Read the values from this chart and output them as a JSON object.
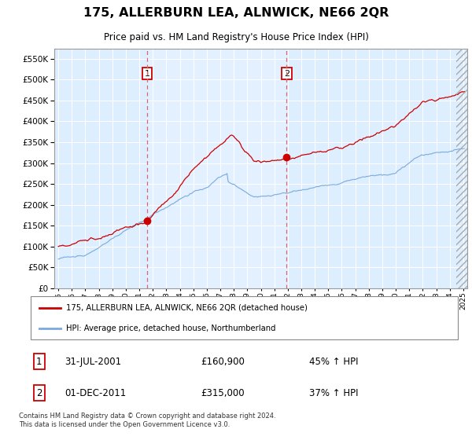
{
  "title": "175, ALLERBURN LEA, ALNWICK, NE66 2QR",
  "subtitle": "Price paid vs. HM Land Registry's House Price Index (HPI)",
  "legend_line1": "175, ALLERBURN LEA, ALNWICK, NE66 2QR (detached house)",
  "legend_line2": "HPI: Average price, detached house, Northumberland",
  "annotation1_num": "1",
  "annotation1_date": "31-JUL-2001",
  "annotation1_price": "£160,900",
  "annotation1_hpi": "45% ↑ HPI",
  "annotation2_num": "2",
  "annotation2_date": "01-DEC-2011",
  "annotation2_price": "£315,000",
  "annotation2_hpi": "37% ↑ HPI",
  "footer": "Contains HM Land Registry data © Crown copyright and database right 2024.\nThis data is licensed under the Open Government Licence v3.0.",
  "sale1_year": 2001.583,
  "sale1_price": 160900,
  "sale2_year": 2011.917,
  "sale2_price": 315000,
  "ylim": [
    0,
    575000
  ],
  "xlim": [
    1994.7,
    2025.3
  ],
  "red_color": "#cc0000",
  "blue_color": "#7aaadd",
  "bg_color": "#ddeeff",
  "grid_color": "#cccccc",
  "marker_color": "#cc0000",
  "box_fill_color": "#ddeeff",
  "box_fill_light": "#e8f2ff"
}
